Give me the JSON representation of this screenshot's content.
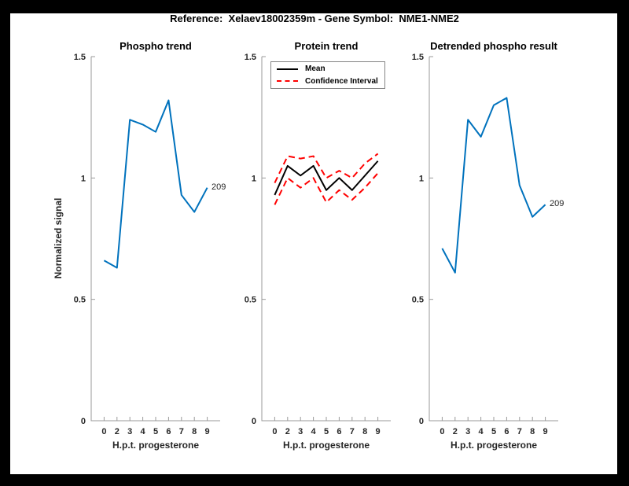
{
  "figure": {
    "title": "Reference:  Xelaev18002359m - Gene Symbol:  NME1-NME2",
    "background_color": "#000000",
    "canvas_color": "#ffffff",
    "axis_color": "#999999",
    "tick_label_color": "#262626",
    "accent_blue": "#0072BD",
    "accent_red": "#ff0000"
  },
  "chart_data": [
    {
      "type": "line",
      "title": "Phospho trend",
      "xlabel": "H.p.t. progesterone",
      "ylabel": "Normalized signal",
      "categories": [
        "0",
        "2",
        "3",
        "4",
        "5",
        "6",
        "7",
        "8",
        "9"
      ],
      "yticks": [
        0,
        0.5,
        1,
        1.5
      ],
      "ylim": [
        0,
        1.5
      ],
      "grid": false,
      "legend_position": "none",
      "end_label": "209",
      "series": [
        {
          "name": "209",
          "color": "#0072BD",
          "style": "solid",
          "values": [
            0.66,
            0.63,
            1.24,
            1.22,
            1.19,
            1.32,
            0.93,
            0.86,
            0.96
          ]
        }
      ]
    },
    {
      "type": "line",
      "title": "Protein trend",
      "xlabel": "H.p.t. progesterone",
      "ylabel": "",
      "categories": [
        "0",
        "2",
        "3",
        "4",
        "5",
        "6",
        "7",
        "8",
        "9"
      ],
      "yticks": [
        0,
        0.5,
        1,
        1.5
      ],
      "ylim": [
        0,
        1.5
      ],
      "grid": false,
      "legend": [
        "Mean",
        "Confidence Interval"
      ],
      "legend_position": "top-left-inside",
      "series": [
        {
          "name": "Mean",
          "color": "#000000",
          "style": "solid",
          "values": [
            0.93,
            1.05,
            1.01,
            1.05,
            0.95,
            1.0,
            0.95,
            1.01,
            1.07
          ]
        },
        {
          "name": "Confidence Interval upper",
          "color": "#ff0000",
          "style": "dashed",
          "values": [
            0.98,
            1.09,
            1.08,
            1.09,
            1.0,
            1.03,
            1.0,
            1.06,
            1.1
          ]
        },
        {
          "name": "Confidence Interval lower",
          "color": "#ff0000",
          "style": "dashed",
          "values": [
            0.89,
            1.0,
            0.96,
            1.0,
            0.9,
            0.95,
            0.91,
            0.96,
            1.02
          ]
        }
      ]
    },
    {
      "type": "line",
      "title": "Detrended phospho result",
      "xlabel": "H.p.t. progesterone",
      "ylabel": "",
      "categories": [
        "0",
        "2",
        "3",
        "4",
        "5",
        "6",
        "7",
        "8",
        "9"
      ],
      "yticks": [
        0,
        0.5,
        1,
        1.5
      ],
      "ylim": [
        0,
        1.5
      ],
      "grid": false,
      "legend_position": "none",
      "end_label": "209",
      "series": [
        {
          "name": "209",
          "color": "#0072BD",
          "style": "solid",
          "values": [
            0.71,
            0.61,
            1.24,
            1.17,
            1.3,
            1.33,
            0.97,
            0.84,
            0.89
          ]
        }
      ]
    }
  ]
}
